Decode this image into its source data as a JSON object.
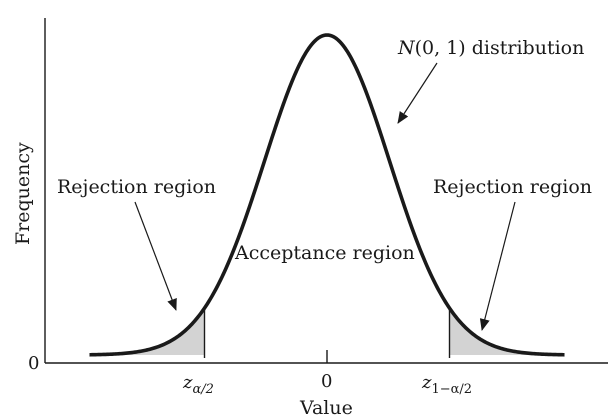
{
  "diagram": {
    "type": "normal-distribution-hypothesis-test",
    "curve_label": "N(0, 1) distribution",
    "curve_label_parts": {
      "symbol": "N",
      "args": "(0, 1)",
      "rest": " distribution"
    },
    "region_labels": {
      "left": "Rejection region",
      "center": "Acceptance region",
      "right": "Rejection region"
    },
    "axes": {
      "x_title": "Value",
      "y_title": "Frequency",
      "y_zero": "0"
    },
    "x_ticks": {
      "lower_critical": {
        "base": "z",
        "subscript": "α/2"
      },
      "center": "0",
      "upper_critical": {
        "base": "z",
        "subscript": "1−α/2"
      }
    },
    "critical_value_magnitude": 1.96,
    "x_range": [
      -3.8,
      3.8
    ],
    "shading_color": "#d3d3d3",
    "line_color": "#1a1a1a"
  }
}
